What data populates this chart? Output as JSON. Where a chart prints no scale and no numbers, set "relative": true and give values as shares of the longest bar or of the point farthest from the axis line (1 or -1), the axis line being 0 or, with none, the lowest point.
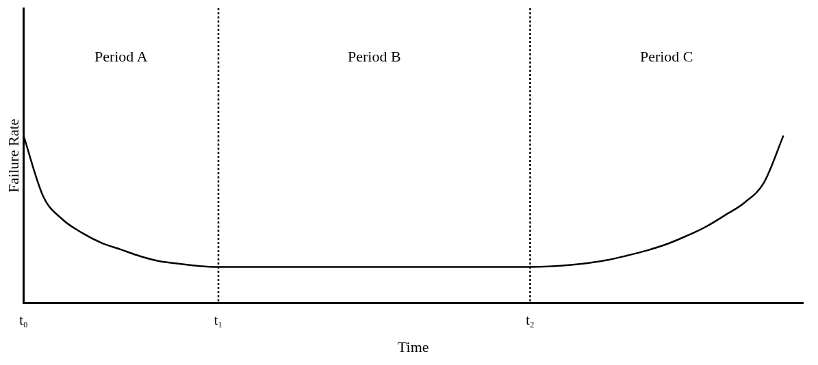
{
  "chart_data": {
    "type": "line",
    "relative": true,
    "xlabel": "Time",
    "ylabel": "Failure Rate",
    "categories": [
      "t₀",
      null,
      null,
      null,
      null,
      null,
      null,
      null,
      null,
      null,
      "t₁",
      null,
      null,
      null,
      null,
      null,
      null,
      null,
      null,
      null,
      null,
      null,
      null,
      null,
      null,
      null,
      "t₂",
      null,
      null,
      null,
      null,
      null,
      null,
      null,
      null,
      null,
      null,
      null,
      null,
      null,
      null
    ],
    "series": [
      {
        "color": "#000000",
        "values": [
          1,
          0.64,
          0.5,
          0.42,
          0.36,
          0.32,
          0.28,
          0.25,
          0.235,
          0.222,
          0.217,
          0.217,
          0.217,
          0.217,
          0.217,
          0.217,
          0.217,
          0.217,
          0.217,
          0.217,
          0.217,
          0.217,
          0.217,
          0.217,
          0.217,
          0.217,
          0.217,
          0.22,
          0.228,
          0.24,
          0.258,
          0.285,
          0.315,
          0.352,
          0.4,
          0.455,
          0.525,
          0.6,
          0.72,
          1.0,
          null
        ]
      }
    ],
    "ref_lines": [
      {
        "axis": "x",
        "value": "t₁",
        "line_style": "dotted",
        "color": "#000000"
      },
      {
        "axis": "x",
        "value": "t₂",
        "line_style": "dotted",
        "color": "#000000"
      }
    ],
    "annotations": [
      "Period A",
      "Period B",
      "Period C"
    ],
    "grid": false,
    "legend": false,
    "marker": "none",
    "line_style": "solid"
  }
}
